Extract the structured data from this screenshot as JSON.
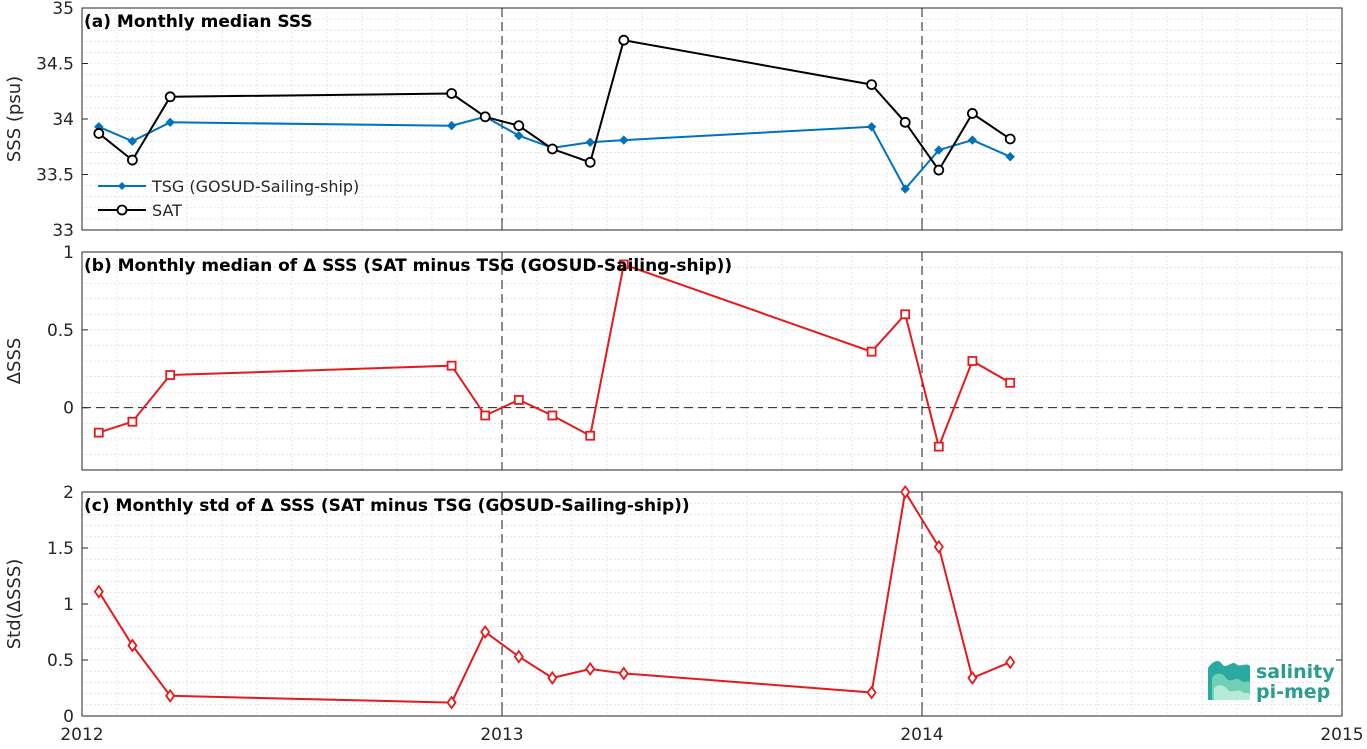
{
  "colors": {
    "tsg": "#0072bd",
    "sat": "#000000",
    "delta": "#e41a1c"
  },
  "xticks": [
    "2012",
    "2013",
    "2014",
    "2015"
  ],
  "logo": {
    "line1": "salinity",
    "line2": "pi-mep",
    "icon": "wave-layers-icon"
  },
  "chart_data": [
    {
      "type": "line",
      "title": "(a) Monthly median SSS",
      "ylabel": "SSS (psu)",
      "xlim": [
        2012,
        2015
      ],
      "ylim": [
        33,
        35
      ],
      "yticks": [
        "33",
        "33.5",
        "34",
        "34.5",
        "35"
      ],
      "grid": true,
      "legend_position": "bottom-left",
      "series": [
        {
          "name": "TSG (GOSUD-Sailing-ship)",
          "marker": "dot",
          "x": [
            2012.04,
            2012.12,
            2012.21,
            2012.88,
            2012.96,
            2013.04,
            2013.12,
            2013.21,
            2013.29,
            2013.88,
            2013.96,
            2014.04,
            2014.12,
            2014.21
          ],
          "values": [
            33.93,
            33.8,
            33.97,
            33.94,
            34.02,
            33.85,
            33.74,
            33.79,
            33.81,
            33.93,
            33.37,
            33.72,
            33.81,
            33.66
          ]
        },
        {
          "name": "SAT",
          "marker": "circle",
          "x": [
            2012.04,
            2012.12,
            2012.21,
            2012.88,
            2012.96,
            2013.04,
            2013.12,
            2013.21,
            2013.29,
            2013.88,
            2013.96,
            2014.04,
            2014.12,
            2014.21
          ],
          "values": [
            33.87,
            33.63,
            34.2,
            34.23,
            34.02,
            33.94,
            33.73,
            33.61,
            34.71,
            34.31,
            33.97,
            33.54,
            34.05,
            33.82
          ]
        }
      ]
    },
    {
      "type": "line",
      "title": "(b) Monthly median of Δ SSS (SAT minus TSG (GOSUD-Sailing-ship))",
      "ylabel": "ΔSSS",
      "xlim": [
        2012,
        2015
      ],
      "ylim": [
        -0.4,
        1
      ],
      "yticks": [
        "0",
        "0.5",
        "1"
      ],
      "zero_line": true,
      "grid": true,
      "series": [
        {
          "marker": "square",
          "x": [
            2012.04,
            2012.12,
            2012.21,
            2012.88,
            2012.96,
            2013.04,
            2013.12,
            2013.21,
            2013.29,
            2013.88,
            2013.96,
            2014.04,
            2014.12,
            2014.21
          ],
          "values": [
            -0.16,
            -0.09,
            0.21,
            0.27,
            -0.05,
            0.05,
            -0.05,
            -0.18,
            0.92,
            0.36,
            0.6,
            -0.25,
            0.3,
            0.16
          ]
        }
      ]
    },
    {
      "type": "line",
      "title": "(c) Monthly std of Δ SSS (SAT minus TSG (GOSUD-Sailing-ship))",
      "ylabel": "Std(ΔSSS)",
      "xlim": [
        2012,
        2015
      ],
      "ylim": [
        0,
        2
      ],
      "yticks": [
        "0",
        "0.5",
        "1",
        "1.5",
        "2"
      ],
      "grid": true,
      "series": [
        {
          "marker": "diamond",
          "x": [
            2012.04,
            2012.12,
            2012.21,
            2012.88,
            2012.96,
            2013.04,
            2013.12,
            2013.21,
            2013.29,
            2013.88,
            2013.96,
            2014.04,
            2014.12,
            2014.21
          ],
          "values": [
            1.11,
            0.63,
            0.18,
            0.12,
            0.75,
            0.53,
            0.34,
            0.42,
            0.38,
            0.21,
            2.0,
            1.51,
            0.34,
            0.48
          ]
        }
      ]
    }
  ]
}
